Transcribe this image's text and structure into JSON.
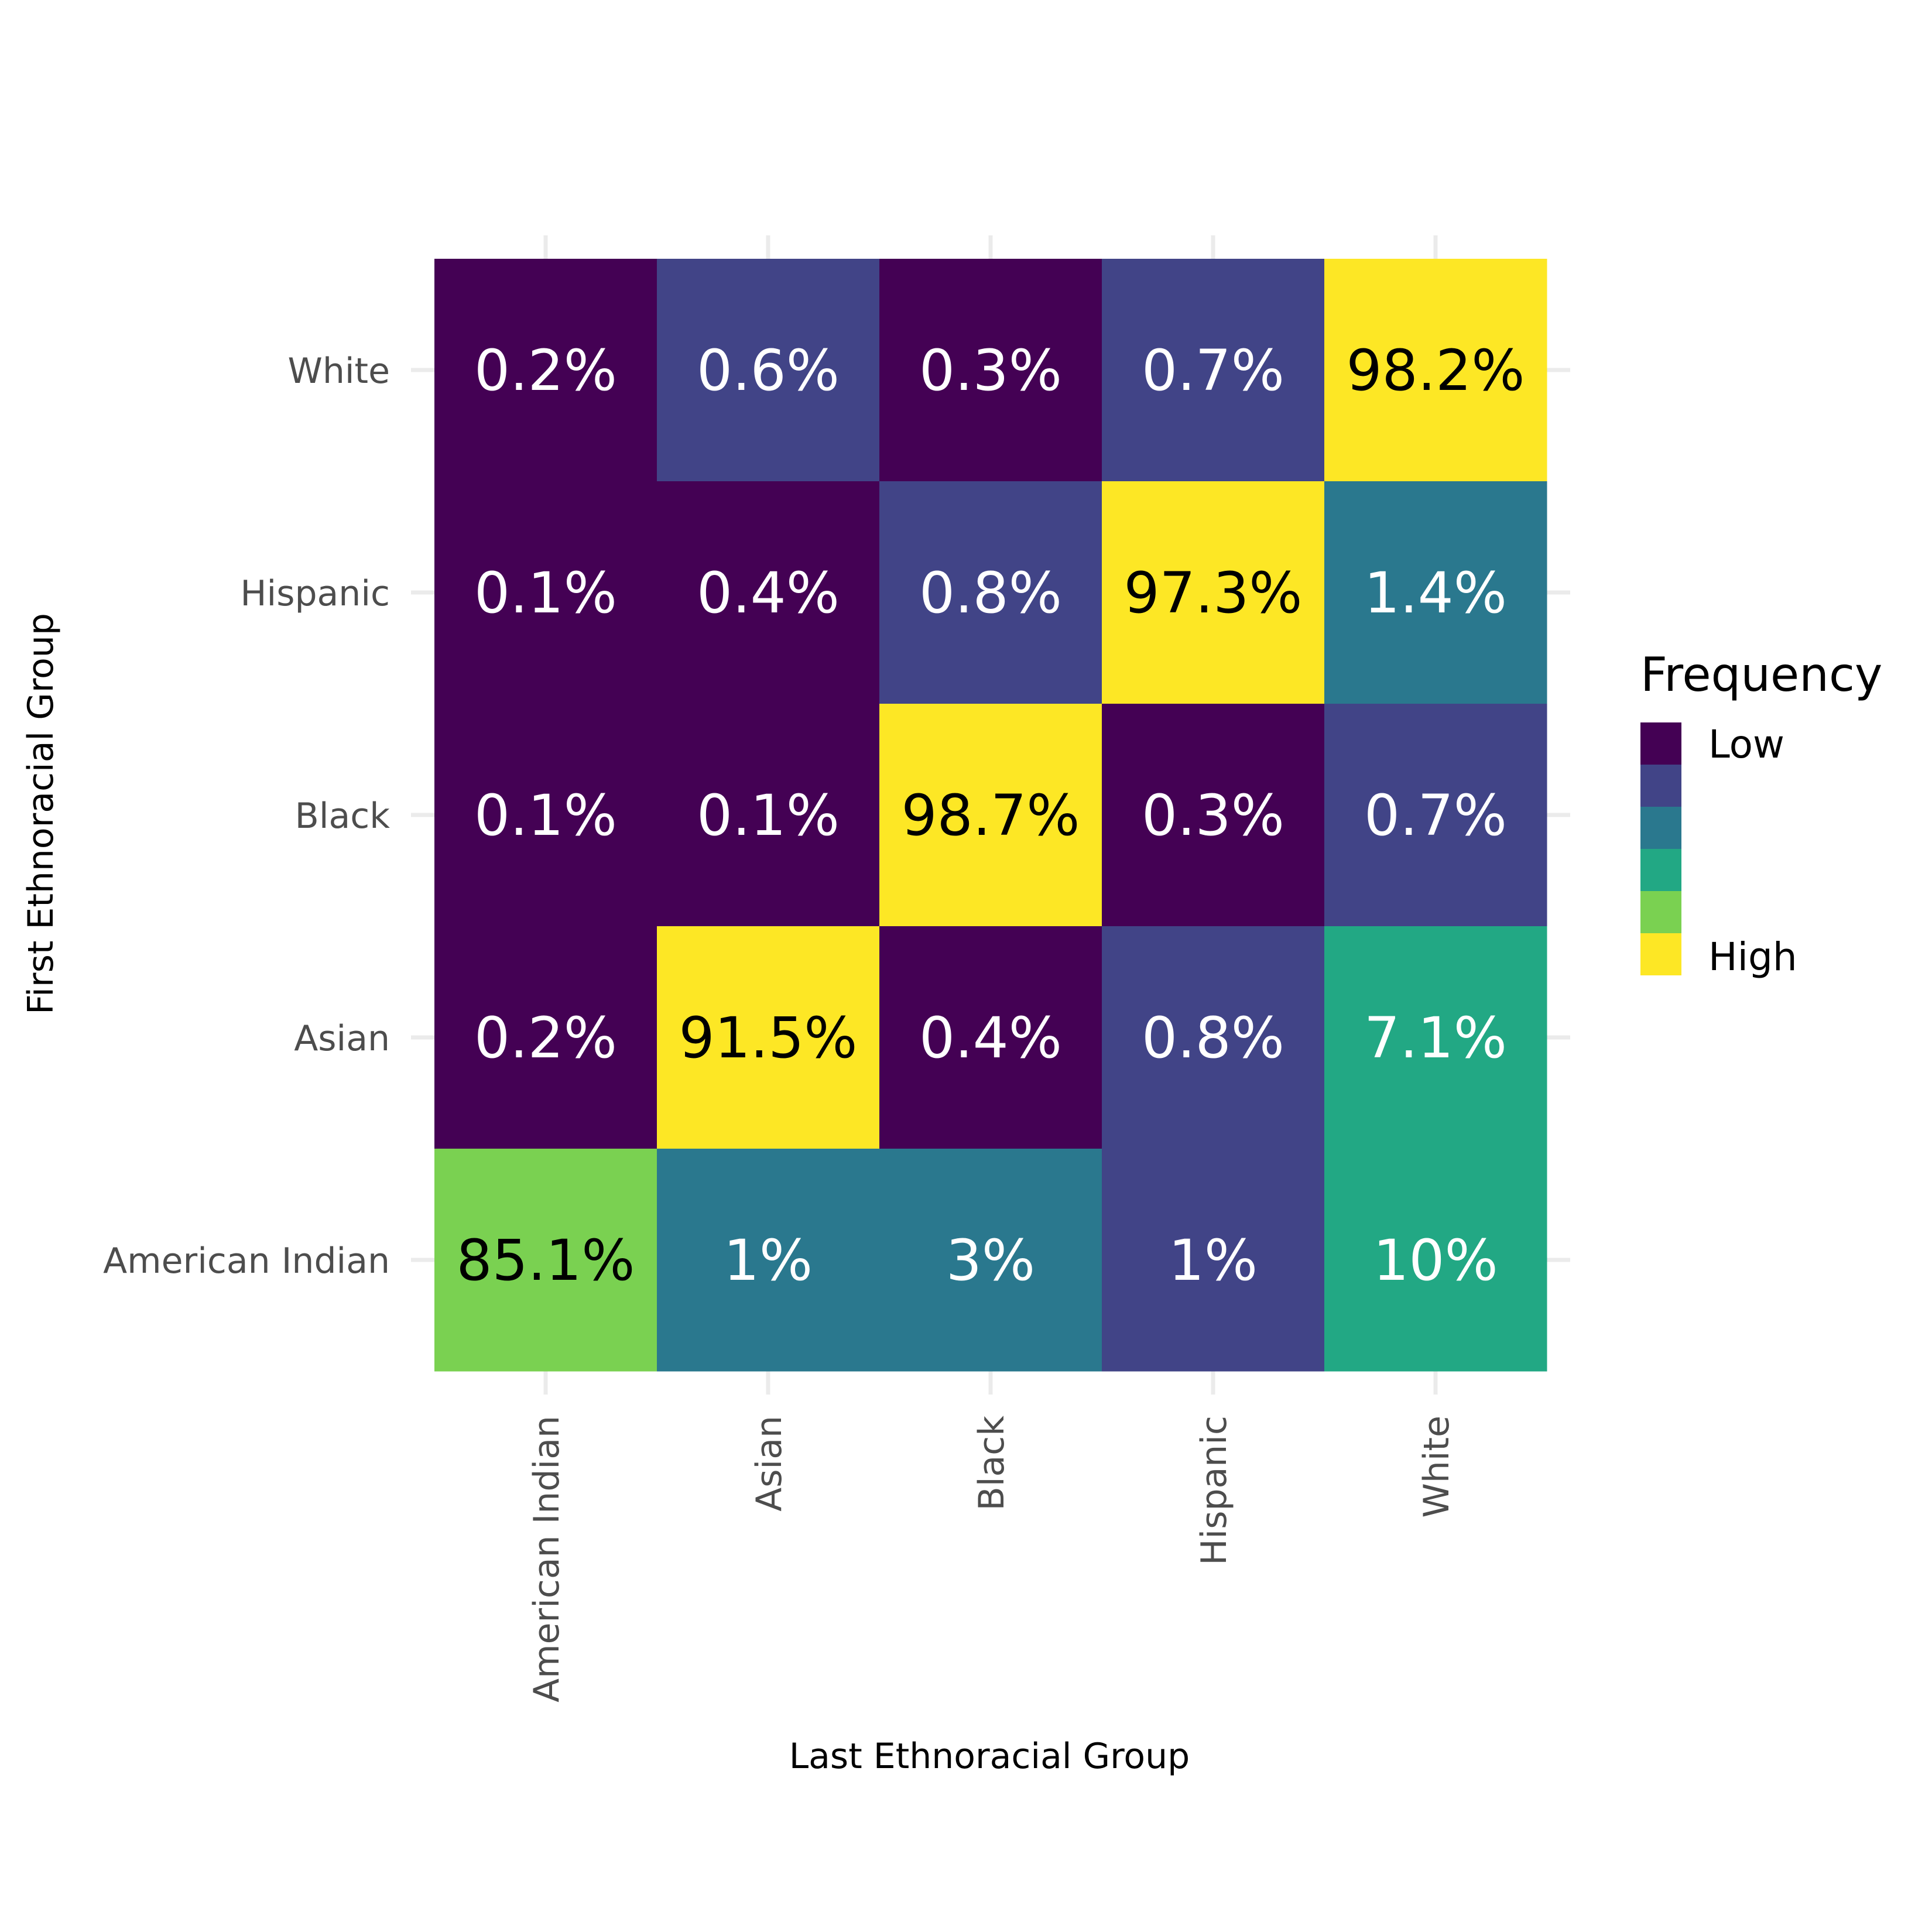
{
  "chart_data": {
    "type": "heatmap",
    "xlabel": "Last Ethnoracial Group",
    "ylabel": "First Ethnoracial Group",
    "x_categories": [
      "American Indian",
      "Asian",
      "Black",
      "Hispanic",
      "White"
    ],
    "y_categories": [
      "American Indian",
      "Asian",
      "Black",
      "Hispanic",
      "White"
    ],
    "cells": [
      {
        "y": "White",
        "x": "American Indian",
        "label": "0.2%",
        "value": 0.2,
        "level": 1
      },
      {
        "y": "White",
        "x": "Asian",
        "label": "0.6%",
        "value": 0.6,
        "level": 2
      },
      {
        "y": "White",
        "x": "Black",
        "label": "0.3%",
        "value": 0.3,
        "level": 1
      },
      {
        "y": "White",
        "x": "Hispanic",
        "label": "0.7%",
        "value": 0.7,
        "level": 2
      },
      {
        "y": "White",
        "x": "White",
        "label": "98.2%",
        "value": 98.2,
        "level": 6
      },
      {
        "y": "Hispanic",
        "x": "American Indian",
        "label": "0.1%",
        "value": 0.1,
        "level": 1
      },
      {
        "y": "Hispanic",
        "x": "Asian",
        "label": "0.4%",
        "value": 0.4,
        "level": 1
      },
      {
        "y": "Hispanic",
        "x": "Black",
        "label": "0.8%",
        "value": 0.8,
        "level": 2
      },
      {
        "y": "Hispanic",
        "x": "Hispanic",
        "label": "97.3%",
        "value": 97.3,
        "level": 6
      },
      {
        "y": "Hispanic",
        "x": "White",
        "label": "1.4%",
        "value": 1.4,
        "level": 3
      },
      {
        "y": "Black",
        "x": "American Indian",
        "label": "0.1%",
        "value": 0.1,
        "level": 1
      },
      {
        "y": "Black",
        "x": "Asian",
        "label": "0.1%",
        "value": 0.1,
        "level": 1
      },
      {
        "y": "Black",
        "x": "Black",
        "label": "98.7%",
        "value": 98.7,
        "level": 6
      },
      {
        "y": "Black",
        "x": "Hispanic",
        "label": "0.3%",
        "value": 0.3,
        "level": 1
      },
      {
        "y": "Black",
        "x": "White",
        "label": "0.7%",
        "value": 0.7,
        "level": 2
      },
      {
        "y": "Asian",
        "x": "American Indian",
        "label": "0.2%",
        "value": 0.2,
        "level": 1
      },
      {
        "y": "Asian",
        "x": "Asian",
        "label": "91.5%",
        "value": 91.5,
        "level": 6
      },
      {
        "y": "Asian",
        "x": "Black",
        "label": "0.4%",
        "value": 0.4,
        "level": 1
      },
      {
        "y": "Asian",
        "x": "Hispanic",
        "label": "0.8%",
        "value": 0.8,
        "level": 2
      },
      {
        "y": "Asian",
        "x": "White",
        "label": "7.1%",
        "value": 7.1,
        "level": 4
      },
      {
        "y": "American Indian",
        "x": "American Indian",
        "label": "85.1%",
        "value": 85.1,
        "level": 5
      },
      {
        "y": "American Indian",
        "x": "Asian",
        "label": "1%",
        "value": 1,
        "level": 3
      },
      {
        "y": "American Indian",
        "x": "Black",
        "label": "3%",
        "value": 3,
        "level": 3
      },
      {
        "y": "American Indian",
        "x": "Hispanic",
        "label": "1%",
        "value": 1,
        "level": 2
      },
      {
        "y": "American Indian",
        "x": "White",
        "label": "10%",
        "value": 10,
        "level": 4
      }
    ],
    "legend": {
      "title": "Frequency",
      "position": "right",
      "low_label": "Low",
      "high_label": "High",
      "colors": [
        "#440154",
        "#414487",
        "#2a788e",
        "#22a884",
        "#7ad151",
        "#fde725"
      ]
    },
    "grid": true
  }
}
